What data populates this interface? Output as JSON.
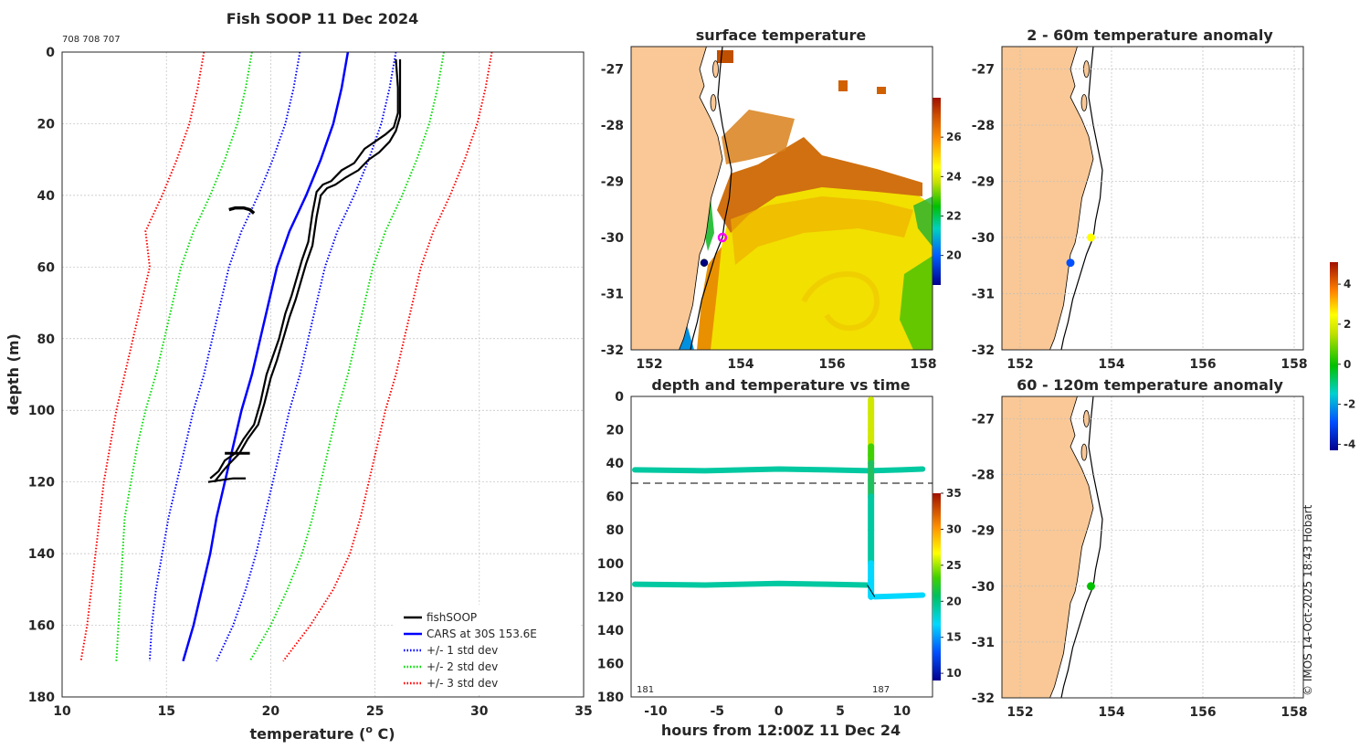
{
  "figure": {
    "sub_id": "708 708 707",
    "copyright": "© IMOS 14-Oct-2025 18:43 Hobart"
  },
  "colors": {
    "fishsoop": "#000000",
    "cars": "#0000ff",
    "std1": "#0000ff",
    "std2": "#00dd00",
    "std3": "#ff0000",
    "land": "#f9c896",
    "coast": "#000000"
  },
  "chart_data": [
    {
      "id": "profile",
      "type": "line",
      "title": "Fish SOOP 11 Dec 2024",
      "xlabel": "temperature (",
      "xlabel_sup": "o",
      "xlabel_tail": " C)",
      "ylabel": "depth (m)",
      "xlim": [
        10,
        35
      ],
      "ylim": [
        180,
        0
      ],
      "xticks": [
        10,
        15,
        20,
        25,
        30,
        35
      ],
      "yticks": [
        0,
        20,
        40,
        60,
        80,
        100,
        120,
        140,
        160,
        180
      ],
      "legend": {
        "position": "bottom-right",
        "entries": [
          {
            "label": "fishSOOP",
            "color": "#000000",
            "style": "solid"
          },
          {
            "label": "CARS at 30S 153.6E",
            "color": "#0000ff",
            "style": "solid"
          },
          {
            "label": "+/- 1 std dev",
            "color": "#0000ff",
            "style": "dotted"
          },
          {
            "label": "+/- 2 std dev",
            "color": "#00dd00",
            "style": "dotted"
          },
          {
            "label": "+/- 3 std dev",
            "color": "#ff0000",
            "style": "dotted"
          }
        ]
      },
      "depths": [
        0,
        10,
        20,
        30,
        40,
        50,
        60,
        70,
        80,
        90,
        100,
        110,
        120,
        130,
        140,
        150,
        160,
        170
      ],
      "cars_mean": [
        23.7,
        23.4,
        23.0,
        22.4,
        21.7,
        20.9,
        20.3,
        19.9,
        19.5,
        19.1,
        18.6,
        18.2,
        17.8,
        17.4,
        17.1,
        16.7,
        16.3,
        15.8
      ],
      "std_minus1": [
        21.4,
        21.1,
        20.7,
        20.1,
        19.4,
        18.6,
        18.0,
        17.6,
        17.2,
        16.8,
        16.3,
        15.9,
        15.5,
        15.1,
        14.8,
        14.5,
        14.3,
        14.2
      ],
      "std_plus1": [
        26.0,
        25.7,
        25.3,
        24.7,
        24.0,
        23.2,
        22.6,
        22.2,
        21.8,
        21.4,
        20.9,
        20.5,
        20.1,
        19.7,
        19.3,
        18.8,
        18.2,
        17.4
      ],
      "std_minus2": [
        19.1,
        18.8,
        18.4,
        17.8,
        17.1,
        16.3,
        15.7,
        15.3,
        14.9,
        14.5,
        14.0,
        13.6,
        13.3,
        13.0,
        12.9,
        12.8,
        12.7,
        12.6
      ],
      "std_plus2": [
        28.3,
        28.0,
        27.6,
        27.0,
        26.3,
        25.5,
        24.9,
        24.5,
        24.1,
        23.7,
        23.2,
        22.8,
        22.4,
        22.0,
        21.5,
        20.8,
        20.0,
        19.0
      ],
      "std_minus3": [
        16.8,
        16.5,
        16.1,
        15.5,
        14.8,
        14.0,
        14.2,
        13.8,
        13.4,
        13.0,
        12.6,
        12.3,
        12.0,
        11.8,
        11.6,
        11.4,
        11.2,
        10.9
      ],
      "std_plus3": [
        30.6,
        30.3,
        29.9,
        29.3,
        28.6,
        27.8,
        27.2,
        26.8,
        26.4,
        26.0,
        25.5,
        25.1,
        24.7,
        24.3,
        23.8,
        23.0,
        21.9,
        20.6
      ],
      "fishsoop_a": [
        [
          26.0,
          2
        ],
        [
          26.1,
          10
        ],
        [
          26.1,
          17
        ],
        [
          25.9,
          21
        ],
        [
          25.5,
          23
        ],
        [
          25.0,
          25
        ],
        [
          24.5,
          27
        ],
        [
          24.0,
          31
        ],
        [
          23.4,
          33
        ],
        [
          22.9,
          36
        ],
        [
          22.5,
          37
        ],
        [
          22.2,
          39
        ],
        [
          22.0,
          45
        ],
        [
          21.8,
          53
        ],
        [
          21.5,
          58
        ],
        [
          21.3,
          62
        ],
        [
          21.0,
          68
        ],
        [
          20.7,
          73
        ],
        [
          20.4,
          80
        ],
        [
          20.1,
          85
        ],
        [
          19.8,
          90
        ],
        [
          19.5,
          98
        ],
        [
          19.2,
          104
        ],
        [
          18.7,
          108
        ],
        [
          18.3,
          112
        ],
        [
          17.8,
          114
        ],
        [
          17.5,
          117
        ],
        [
          17.1,
          119
        ]
      ],
      "fishsoop_b": [
        [
          26.2,
          2
        ],
        [
          26.2,
          10
        ],
        [
          26.2,
          18
        ],
        [
          26.0,
          22
        ],
        [
          25.7,
          25
        ],
        [
          25.2,
          28
        ],
        [
          24.7,
          30
        ],
        [
          24.2,
          33
        ],
        [
          23.6,
          35
        ],
        [
          23.1,
          37
        ],
        [
          22.7,
          38
        ],
        [
          22.4,
          40
        ],
        [
          22.2,
          46
        ],
        [
          22.0,
          54
        ],
        [
          21.7,
          59
        ],
        [
          21.5,
          63
        ],
        [
          21.2,
          69
        ],
        [
          20.9,
          74
        ],
        [
          20.6,
          80
        ],
        [
          20.3,
          86
        ],
        [
          20.0,
          91
        ],
        [
          19.7,
          98
        ],
        [
          19.4,
          104
        ],
        [
          18.9,
          108
        ],
        [
          18.5,
          112
        ],
        [
          18.0,
          115
        ],
        [
          17.7,
          117
        ],
        [
          17.3,
          120
        ]
      ],
      "fishsoop_c": [
        [
          17.8,
          112
        ],
        [
          18.3,
          112
        ],
        [
          18.7,
          112
        ],
        [
          19.0,
          112
        ]
      ],
      "fishsoop_d": [
        [
          17.0,
          120
        ],
        [
          17.6,
          119.5
        ],
        [
          18.2,
          119
        ],
        [
          18.8,
          119
        ]
      ],
      "fishsoop_e": [
        [
          18.0,
          44
        ],
        [
          18.3,
          43.5
        ],
        [
          18.7,
          43.5
        ],
        [
          19.0,
          44
        ],
        [
          19.2,
          45
        ]
      ]
    },
    {
      "id": "sst_map",
      "type": "heatmap",
      "title": "surface temperature",
      "xlim": [
        151.6,
        158.2
      ],
      "ylim": [
        -32,
        -26.6
      ],
      "xticks": [
        152,
        154,
        156,
        158
      ],
      "yticks": [
        -27,
        -28,
        -29,
        -30,
        -31,
        -32
      ],
      "colorbar": {
        "range": [
          18.5,
          28
        ],
        "ticks": [
          20,
          22,
          24,
          26
        ]
      },
      "markers": [
        {
          "lon": 153.6,
          "lat": -30.0,
          "color": "#ff00ff",
          "kind": "ring"
        },
        {
          "lon": 153.2,
          "lat": -30.45,
          "color": "#000080",
          "kind": "dot"
        }
      ]
    },
    {
      "id": "time_series",
      "type": "scatter",
      "title": "depth and temperature vs time",
      "xlabel": "hours from 12:00Z 11 Dec 24",
      "xlim": [
        -12,
        12.5
      ],
      "ylim": [
        180,
        0
      ],
      "xticks": [
        -10,
        -5,
        0,
        5,
        10
      ],
      "yticks": [
        0,
        20,
        40,
        60,
        80,
        100,
        120,
        140,
        160,
        180
      ],
      "reference_depth": 52,
      "corner_labels": [
        "181",
        "187"
      ],
      "colorbar": {
        "range": [
          9,
          35
        ],
        "ticks": [
          10,
          15,
          20,
          25,
          30,
          35
        ]
      },
      "series": [
        {
          "name": "shallow",
          "hours": [
            -11.7,
            -6,
            0,
            4,
            7.4,
            10,
            11.7
          ],
          "depth": [
            44,
            44.5,
            43.5,
            44,
            44.5,
            44,
            43.5
          ],
          "temp": [
            20.6,
            20.6,
            20.6,
            20.6,
            20.6,
            20.6,
            20.6
          ]
        },
        {
          "name": "deep",
          "hours": [
            -11.7,
            -6,
            0,
            4,
            7.2
          ],
          "depth": [
            112.5,
            113,
            112,
            112.5,
            113
          ],
          "temp": [
            20.5,
            20.5,
            20.5,
            20.5,
            20.5
          ]
        },
        {
          "name": "deep_after",
          "hours": [
            7.8,
            10,
            11.7
          ],
          "depth": [
            120,
            119.5,
            119
          ],
          "temp": [
            18.3,
            18.3,
            18.3
          ]
        },
        {
          "name": "profile",
          "hours": [
            7.5,
            7.5,
            7.5,
            7.5,
            7.5,
            7.5,
            7.5,
            7.5,
            7.5,
            7.5,
            7.5,
            7.5,
            7.5
          ],
          "depth": [
            2,
            10,
            20,
            25,
            30,
            35,
            40,
            50,
            60,
            80,
            100,
            110,
            120
          ],
          "temp": [
            26.0,
            26.0,
            26.0,
            25.5,
            24.5,
            23.5,
            22.4,
            21.8,
            21.3,
            20.6,
            19.6,
            18.6,
            17.4
          ]
        }
      ]
    },
    {
      "id": "anom_2_60",
      "type": "scatter",
      "title": "2 - 60m temperature anomaly",
      "xlim": [
        151.6,
        158.2
      ],
      "ylim": [
        -32,
        -26.6
      ],
      "xticks": [
        152,
        154,
        156,
        158
      ],
      "yticks": [
        -27,
        -28,
        -29,
        -30,
        -31,
        -32
      ],
      "points": [
        {
          "lon": 153.55,
          "lat": -30.0,
          "anomaly": 2.5
        },
        {
          "lon": 153.1,
          "lat": -30.45,
          "anomaly": -1.8
        }
      ]
    },
    {
      "id": "anom_60_120",
      "type": "scatter",
      "title": "60 - 120m temperature anomaly",
      "xlim": [
        151.6,
        158.2
      ],
      "ylim": [
        -32,
        -26.6
      ],
      "xticks": [
        152,
        154,
        156,
        158
      ],
      "yticks": [
        -27,
        -28,
        -29,
        -30,
        -31,
        -32
      ],
      "colorbar": {
        "range": [
          -4.3,
          5.1
        ],
        "ticks": [
          -4,
          -2,
          0,
          2,
          4
        ]
      },
      "points": [
        {
          "lon": 153.55,
          "lat": -30.0,
          "anomaly": 0.3
        }
      ]
    }
  ],
  "coastline": [
    [
      153.25,
      -26.6
    ],
    [
      153.1,
      -27.0
    ],
    [
      153.2,
      -27.3
    ],
    [
      153.1,
      -27.5
    ],
    [
      153.35,
      -27.9
    ],
    [
      153.5,
      -28.2
    ],
    [
      153.6,
      -28.6
    ],
    [
      153.5,
      -28.9
    ],
    [
      153.35,
      -29.3
    ],
    [
      153.3,
      -29.6
    ],
    [
      153.25,
      -29.9
    ],
    [
      153.2,
      -30.1
    ],
    [
      153.1,
      -30.3
    ],
    [
      153.05,
      -30.6
    ],
    [
      153.0,
      -30.9
    ],
    [
      152.95,
      -31.2
    ],
    [
      152.85,
      -31.5
    ],
    [
      152.75,
      -31.8
    ],
    [
      152.65,
      -32.0
    ]
  ],
  "isobath": [
    [
      153.6,
      -26.6
    ],
    [
      153.55,
      -27.0
    ],
    [
      153.5,
      -27.5
    ],
    [
      153.6,
      -28.0
    ],
    [
      153.7,
      -28.4
    ],
    [
      153.8,
      -28.8
    ],
    [
      153.75,
      -29.3
    ],
    [
      153.65,
      -29.7
    ],
    [
      153.6,
      -30.0
    ],
    [
      153.45,
      -30.3
    ],
    [
      153.3,
      -30.7
    ],
    [
      153.15,
      -31.1
    ],
    [
      153.05,
      -31.5
    ],
    [
      152.95,
      -31.8
    ],
    [
      152.9,
      -32.0
    ]
  ],
  "islands": [
    [
      153.45,
      -27.0
    ],
    [
      153.4,
      -27.6
    ]
  ]
}
